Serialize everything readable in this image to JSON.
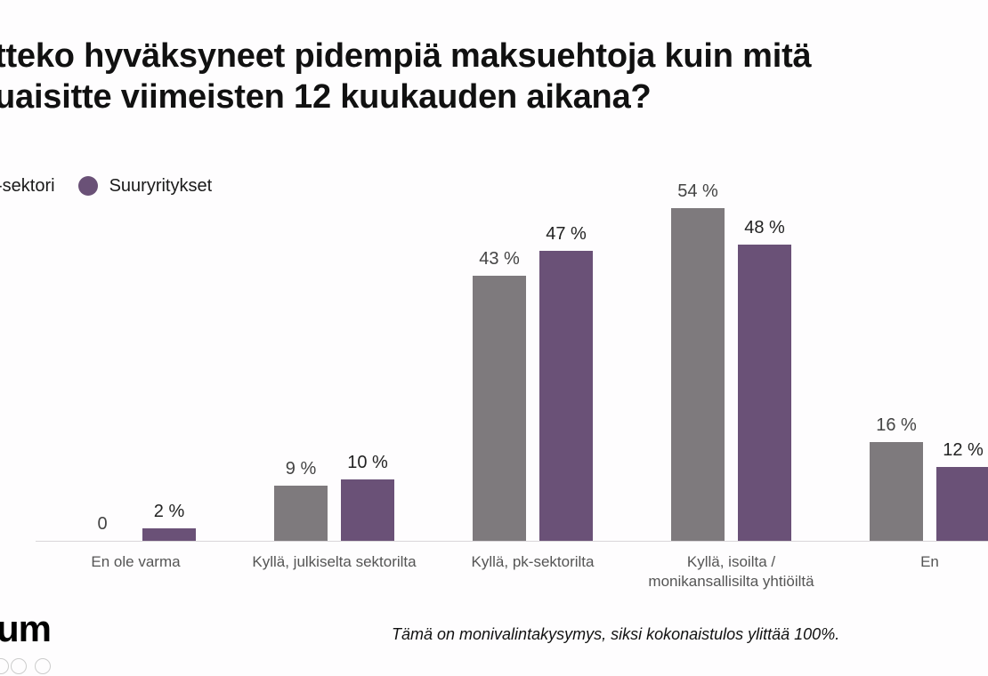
{
  "title": "tteko hyväksyneet pidempiä maksuehtoja kuin mitä\nuaisitte viimeisten 12 kuukauden aikana?",
  "legend": [
    {
      "label": "-sektori",
      "color": "#7e7a7d"
    },
    {
      "label": "Suuryritykset",
      "color": "#6a5177"
    }
  ],
  "footnote": "Tämä on monivalintakysymys, siksi kokonaistulos ylittää 100%.",
  "logo_text": "um",
  "chart_data": {
    "type": "bar",
    "title": "tteko hyväksyneet pidempiä maksuehtoja kuin mitä uaisitte viimeisten 12 kuukauden aikana?",
    "categories": [
      "En ole varma",
      "Kyllä, julkiselta sektorilta",
      "Kyllä, pk-sektorilta",
      "Kyllä, isoilta /\nmonikansallisilta yhtiöiltä",
      "En"
    ],
    "series": [
      {
        "name": "-sektori",
        "color": "#7e7a7d",
        "values": [
          0,
          9,
          43,
          54,
          16
        ],
        "labels": [
          "0",
          "9 %",
          "43 %",
          "54 %",
          "16 %"
        ]
      },
      {
        "name": "Suuryritykset",
        "color": "#6a5177",
        "values": [
          2,
          10,
          47,
          48,
          12
        ],
        "labels": [
          "2 %",
          "10 %",
          "47 %",
          "48 %",
          "12 %"
        ]
      }
    ],
    "xlabel": "",
    "ylabel": "",
    "ylim": [
      0,
      60
    ],
    "grid": false,
    "legend_position": "top-left",
    "annotation": "Tämä on monivalintakysymys, siksi kokonaistulos ylittää 100%."
  }
}
